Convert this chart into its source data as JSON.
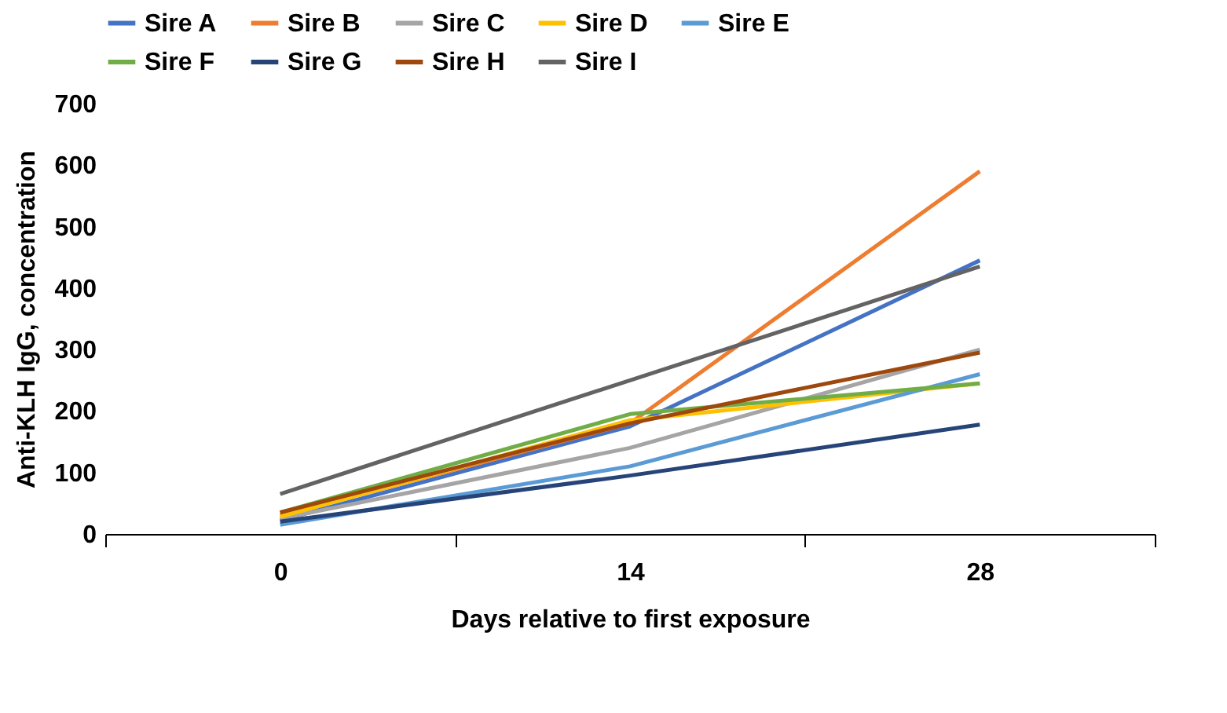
{
  "chart_data": {
    "type": "line",
    "xlabel": "Days relative to first exposure",
    "ylabel": "Anti-KLH IgG, concentration",
    "categories": [
      "0",
      "14",
      "28"
    ],
    "ylim": [
      0,
      700
    ],
    "yticks": [
      0,
      100,
      200,
      300,
      400,
      500,
      600,
      700
    ],
    "grid": false,
    "legend": "top",
    "marker": "none",
    "line_style": "solid",
    "series": [
      {
        "name": "Sire A",
        "color": "#4472c4",
        "values": [
          22,
          175,
          445
        ]
      },
      {
        "name": "Sire B",
        "color": "#ed7d31",
        "values": [
          30,
          180,
          590
        ]
      },
      {
        "name": "Sire C",
        "color": "#a5a5a5",
        "values": [
          25,
          140,
          300
        ]
      },
      {
        "name": "Sire D",
        "color": "#ffc000",
        "values": [
          28,
          185,
          245
        ]
      },
      {
        "name": "Sire E",
        "color": "#5b9bd5",
        "values": [
          15,
          110,
          260
        ]
      },
      {
        "name": "Sire F",
        "color": "#70ad47",
        "values": [
          35,
          195,
          245
        ]
      },
      {
        "name": "Sire G",
        "color": "#264478",
        "values": [
          20,
          95,
          178
        ]
      },
      {
        "name": "Sire H",
        "color": "#9e480e",
        "values": [
          35,
          180,
          295
        ]
      },
      {
        "name": "Sire I",
        "color": "#636363",
        "values": [
          65,
          250,
          435
        ]
      }
    ]
  }
}
